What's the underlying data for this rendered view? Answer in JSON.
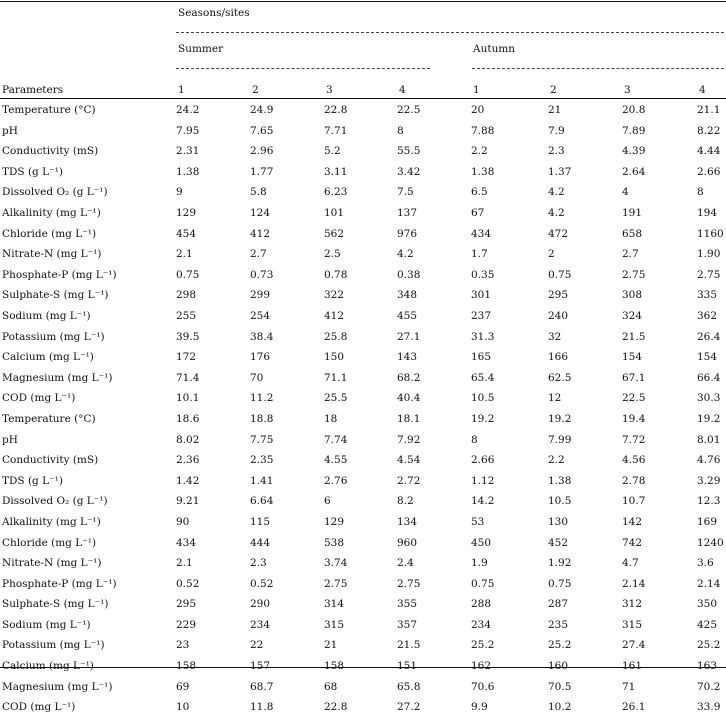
{
  "header": {
    "group": "Seasons/sites",
    "summer": "Summer",
    "autumn": "Autumn",
    "parameters": "Parameters",
    "sites": [
      "1",
      "2",
      "3",
      "4",
      "1",
      "2",
      "3",
      "4"
    ]
  },
  "rows": [
    {
      "name": "Temperature (°C)",
      "values": [
        "24.2",
        "24.9",
        "22.8",
        "22.5",
        "20",
        "21",
        "20.8",
        "21.1"
      ]
    },
    {
      "name": "pH",
      "values": [
        "7.95",
        "7.65",
        "7.71",
        "8",
        "7.88",
        "7.9",
        "7.89",
        "8.22"
      ]
    },
    {
      "name": "Conductivity (mS)",
      "values": [
        "2.31",
        "2.96",
        "5.2",
        "55.5",
        "2.2",
        "2.3",
        "4.39",
        "4.44"
      ]
    },
    {
      "name": "TDS (g L⁻¹)",
      "values": [
        "1.38",
        "1.77",
        "3.11",
        "3.42",
        "1.38",
        "1.37",
        "2.64",
        "2.66"
      ]
    },
    {
      "name": "Dissolved O₂ (g L⁻¹)",
      "values": [
        "9",
        "5.8",
        "6.23",
        "7.5",
        "6.5",
        "4.2",
        "4",
        "8"
      ]
    },
    {
      "name": "Alkalinity (mg L⁻¹)",
      "values": [
        "129",
        "124",
        "101",
        "137",
        "67",
        "4.2",
        "191",
        "194"
      ]
    },
    {
      "name": "Chloride (mg L⁻¹)",
      "values": [
        "454",
        "412",
        "562",
        "976",
        "434",
        "472",
        "658",
        "1160"
      ]
    },
    {
      "name": "Nitrate-N (mg L⁻¹)",
      "values": [
        "2.1",
        "2.7",
        "2.5",
        "4.2",
        "1.7",
        "2",
        "2.7",
        "1.90"
      ]
    },
    {
      "name": "Phosphate-P (mg L⁻¹)",
      "values": [
        "0.75",
        "0.73",
        "0.78",
        "0.38",
        "0.35",
        "0.75",
        "2.75",
        "2.75"
      ]
    },
    {
      "name": "Sulphate-S (mg L⁻¹)",
      "values": [
        "298",
        "299",
        "322",
        "348",
        "301",
        "295",
        "308",
        "335"
      ]
    },
    {
      "name": "Sodium (mg L⁻¹)",
      "values": [
        "255",
        "254",
        "412",
        "455",
        "237",
        "240",
        "324",
        "362"
      ]
    },
    {
      "name": "Potassium (mg L⁻¹)",
      "values": [
        "39.5",
        "38.4",
        "25.8",
        "27.1",
        "31.3",
        "32",
        "21.5",
        "26.4"
      ]
    },
    {
      "name": "Calcium (mg L⁻¹)",
      "values": [
        "172",
        "176",
        "150",
        "143",
        "165",
        "166",
        "154",
        "154"
      ]
    },
    {
      "name": "Magnesium (mg L⁻¹)",
      "values": [
        "71.4",
        "70",
        "71.1",
        "68.2",
        "65.4",
        "62.5",
        "67.1",
        "66.4"
      ]
    },
    {
      "name": "COD (mg L⁻¹)",
      "values": [
        "10.1",
        "11.2",
        "25.5",
        "40.4",
        "10.5",
        "12",
        "22.5",
        "30.3"
      ]
    },
    {
      "name": "Temperature (°C)",
      "values": [
        "18.6",
        "18.8",
        "18",
        "18.1",
        "19.2",
        "19.2",
        "19.4",
        "19.2"
      ]
    },
    {
      "name": "pH",
      "values": [
        "8.02",
        "7.75",
        "7.74",
        "7.92",
        "8",
        "7.99",
        "7.72",
        "8.01"
      ]
    },
    {
      "name": "Conductivity (mS)",
      "values": [
        "2.36",
        "2.35",
        "4.55",
        "4.54",
        "2.66",
        "2.2",
        "4.56",
        "4.76"
      ]
    },
    {
      "name": "TDS (g L⁻¹)",
      "values": [
        "1.42",
        "1.41",
        "2.76",
        "2.72",
        "1.12",
        "1.38",
        "2.78",
        "3.29"
      ]
    },
    {
      "name": "Dissolved O₂ (g L⁻¹)",
      "values": [
        "9.21",
        "6.64",
        "6",
        "8.2",
        "14.2",
        "10.5",
        "10.7",
        "12.3"
      ]
    },
    {
      "name": "Alkalinity (mg L⁻¹)",
      "values": [
        "90",
        "115",
        "129",
        "134",
        "53",
        "130",
        "142",
        "169"
      ]
    },
    {
      "name": "Chloride (mg L⁻¹)",
      "values": [
        "434",
        "444",
        "538",
        "960",
        "450",
        "452",
        "742",
        "1240"
      ]
    },
    {
      "name": "Nitrate-N (mg L⁻¹)",
      "values": [
        "2.1",
        "2.3",
        "3.74",
        "2.4",
        "1.9",
        "1.92",
        "4.7",
        "3.6"
      ]
    },
    {
      "name": "Phosphate-P (mg L⁻¹)",
      "values": [
        "0.52",
        "0.52",
        "2.75",
        "2.75",
        "0.75",
        "0.75",
        "2.14",
        "2.14"
      ]
    },
    {
      "name": "Sulphate-S (mg L⁻¹)",
      "values": [
        "295",
        "290",
        "314",
        "355",
        "288",
        "287",
        "312",
        "350"
      ]
    },
    {
      "name": "Sodium (mg L⁻¹)",
      "values": [
        "229",
        "234",
        "315",
        "357",
        "234",
        "235",
        "315",
        "425"
      ]
    },
    {
      "name": "Potassium (mg L⁻¹)",
      "values": [
        "23",
        "22",
        "21",
        "21.5",
        "25.2",
        "25.2",
        "27.4",
        "25.2"
      ]
    },
    {
      "name": "Calcium (mg L⁻¹)",
      "values": [
        "158",
        "157",
        "158",
        "151",
        "162",
        "160",
        "161",
        "163"
      ]
    },
    {
      "name": "Magnesium (mg L⁻¹)",
      "values": [
        "69",
        "68.7",
        "68",
        "65.8",
        "70.6",
        "70.5",
        "71",
        "70.2"
      ]
    },
    {
      "name": "COD (mg L⁻¹)",
      "values": [
        "10",
        "11.8",
        "22.8",
        "27.2",
        "9.9",
        "10.2",
        "26.1",
        "33.9"
      ]
    }
  ]
}
